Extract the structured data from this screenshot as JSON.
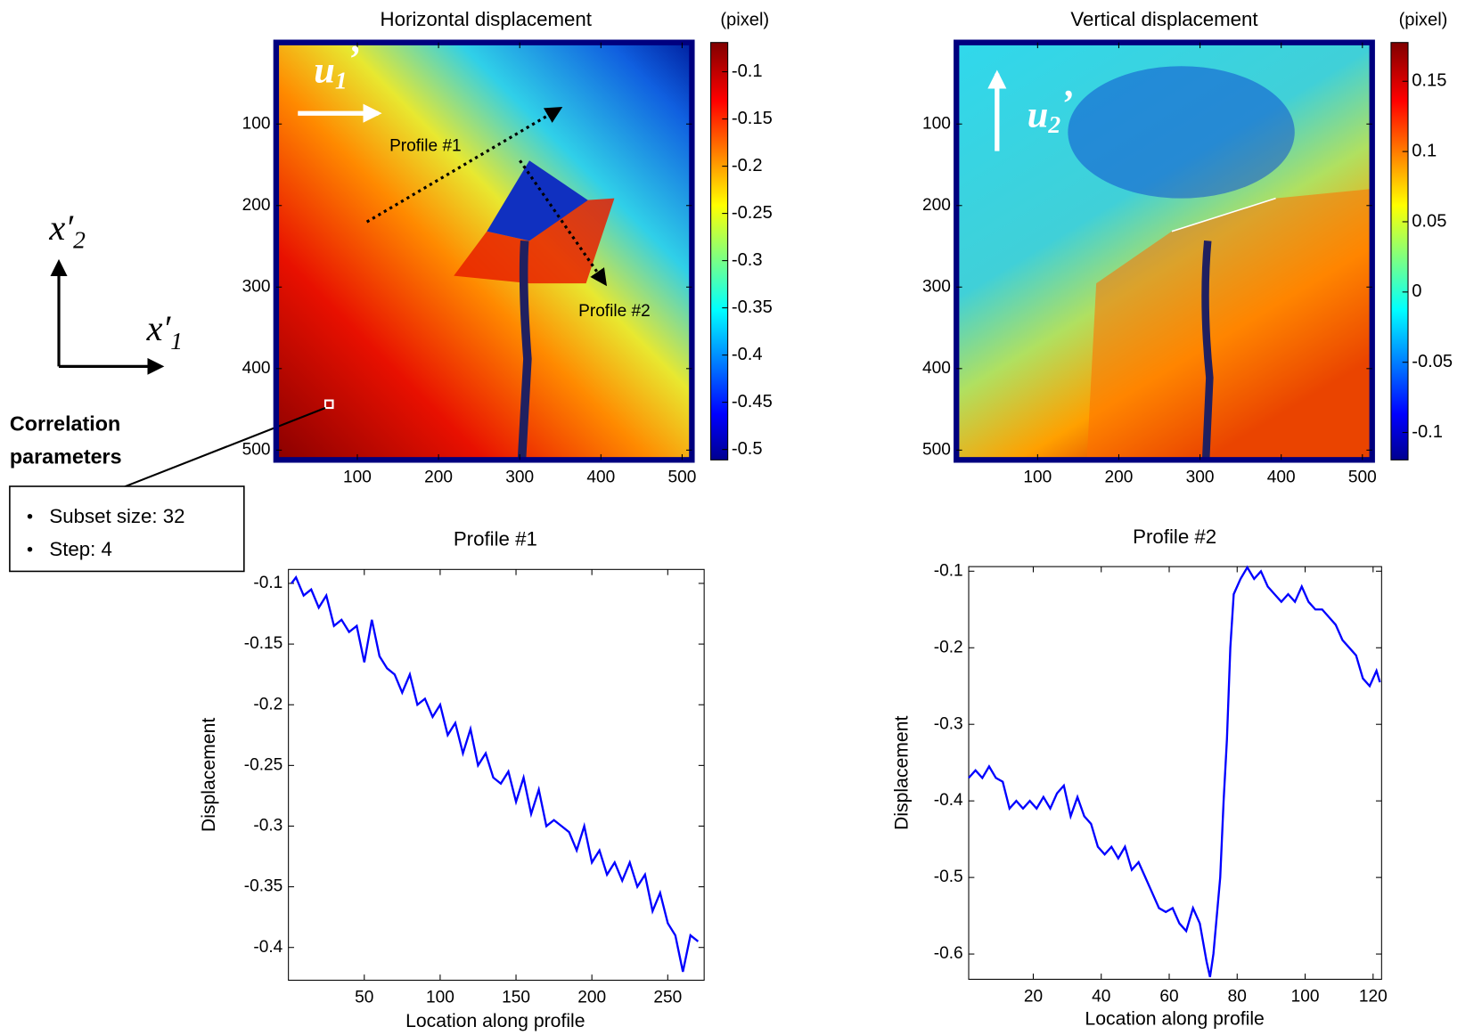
{
  "chart_data": [
    {
      "type": "heatmap",
      "title": "Horizontal displacement",
      "colorbar_label": "(pixel)",
      "colormap": "jet",
      "xlim": [
        0,
        512
      ],
      "ylim": [
        0,
        512
      ],
      "y_reversed": true,
      "xticks": [
        100,
        200,
        300,
        400,
        500
      ],
      "yticks": [
        100,
        200,
        300,
        400,
        500
      ],
      "clim": [
        -0.511,
        -0.069
      ],
      "cticks": [
        -0.5,
        -0.45,
        -0.4,
        -0.35,
        -0.3,
        -0.25,
        -0.2,
        -0.15,
        -0.1
      ],
      "annotations": {
        "symbol": "u",
        "subscript": "1",
        "prime": "’",
        "profile_labels": [
          "Profile #1",
          "Profile #2"
        ]
      }
    },
    {
      "type": "heatmap",
      "title": "Vertical displacement",
      "colorbar_label": "(pixel)",
      "colormap": "jet",
      "xlim": [
        0,
        512
      ],
      "ylim": [
        0,
        512
      ],
      "y_reversed": true,
      "xticks": [
        100,
        200,
        300,
        400,
        500
      ],
      "yticks": [
        100,
        200,
        300,
        400,
        500
      ],
      "clim": [
        -0.1195,
        0.1776
      ],
      "cticks": [
        -0.1,
        -0.05,
        0,
        0.05,
        0.1,
        0.15
      ],
      "annotations": {
        "symbol": "u",
        "subscript": "2",
        "prime": "’"
      }
    },
    {
      "type": "line",
      "title": "Profile #1",
      "xlabel": "Location along profile",
      "ylabel": "Displacement",
      "xlim": [
        0,
        274
      ],
      "ylim": [
        -0.427,
        -0.0885
      ],
      "xticks": [
        50,
        100,
        150,
        200,
        250
      ],
      "yticks": [
        -0.4,
        -0.35,
        -0.3,
        -0.25,
        -0.2,
        -0.15,
        -0.1
      ],
      "x": [
        2,
        5,
        10,
        15,
        20,
        25,
        30,
        35,
        40,
        45,
        50,
        55,
        60,
        65,
        70,
        75,
        80,
        85,
        90,
        95,
        100,
        105,
        110,
        115,
        120,
        125,
        130,
        135,
        140,
        145,
        150,
        155,
        160,
        165,
        170,
        175,
        180,
        185,
        190,
        195,
        200,
        205,
        210,
        215,
        220,
        225,
        230,
        235,
        240,
        245,
        250,
        255,
        260,
        265,
        270
      ],
      "series": [
        {
          "color": "#0000ff",
          "values": [
            -0.1,
            -0.095,
            -0.11,
            -0.105,
            -0.12,
            -0.11,
            -0.135,
            -0.13,
            -0.14,
            -0.135,
            -0.165,
            -0.13,
            -0.16,
            -0.17,
            -0.175,
            -0.19,
            -0.175,
            -0.2,
            -0.195,
            -0.21,
            -0.2,
            -0.225,
            -0.215,
            -0.24,
            -0.22,
            -0.25,
            -0.24,
            -0.26,
            -0.265,
            -0.255,
            -0.28,
            -0.26,
            -0.29,
            -0.27,
            -0.3,
            -0.295,
            -0.3,
            -0.305,
            -0.32,
            -0.3,
            -0.33,
            -0.32,
            -0.34,
            -0.33,
            -0.345,
            -0.33,
            -0.35,
            -0.34,
            -0.37,
            -0.355,
            -0.38,
            -0.39,
            -0.42,
            -0.39,
            -0.395
          ]
        }
      ]
    },
    {
      "type": "line",
      "title": "Profile #2",
      "xlabel": "Location along profile",
      "ylabel": "Displacement",
      "xlim": [
        1,
        122.5
      ],
      "ylim": [
        -0.633,
        -0.094
      ],
      "xticks": [
        20,
        40,
        60,
        80,
        100,
        120
      ],
      "yticks": [
        -0.6,
        -0.5,
        -0.4,
        -0.3,
        -0.2,
        -0.1
      ],
      "x": [
        1,
        3,
        5,
        7,
        9,
        11,
        13,
        15,
        17,
        19,
        21,
        23,
        25,
        27,
        29,
        31,
        33,
        35,
        37,
        39,
        41,
        43,
        45,
        47,
        49,
        51,
        53,
        55,
        57,
        59,
        61,
        63,
        65,
        67,
        69,
        71,
        72,
        73,
        75,
        76,
        77,
        78,
        79,
        81,
        83,
        85,
        87,
        89,
        91,
        93,
        95,
        97,
        99,
        101,
        103,
        105,
        107,
        109,
        111,
        113,
        115,
        117,
        119,
        121,
        122
      ],
      "series": [
        {
          "color": "#0000ff",
          "values": [
            -0.37,
            -0.36,
            -0.37,
            -0.355,
            -0.37,
            -0.375,
            -0.41,
            -0.4,
            -0.41,
            -0.4,
            -0.41,
            -0.395,
            -0.41,
            -0.39,
            -0.38,
            -0.42,
            -0.395,
            -0.42,
            -0.43,
            -0.46,
            -0.47,
            -0.46,
            -0.475,
            -0.46,
            -0.49,
            -0.48,
            -0.5,
            -0.52,
            -0.54,
            -0.545,
            -0.54,
            -0.56,
            -0.57,
            -0.54,
            -0.56,
            -0.61,
            -0.63,
            -0.6,
            -0.5,
            -0.4,
            -0.32,
            -0.2,
            -0.13,
            -0.11,
            -0.095,
            -0.11,
            -0.1,
            -0.12,
            -0.13,
            -0.14,
            -0.13,
            -0.14,
            -0.12,
            -0.14,
            -0.15,
            -0.15,
            -0.16,
            -0.17,
            -0.19,
            -0.2,
            -0.21,
            -0.24,
            -0.25,
            -0.23,
            -0.245
          ]
        }
      ]
    }
  ],
  "figure_annotations": {
    "axis_x2": {
      "symbol": "x′",
      "subscript": "2"
    },
    "axis_x1": {
      "symbol": "x′",
      "subscript": "1"
    },
    "correlation": {
      "title_lines": [
        "Correlation",
        "parameters"
      ],
      "items": [
        "Subset size: 32",
        "Step: 4"
      ]
    }
  }
}
